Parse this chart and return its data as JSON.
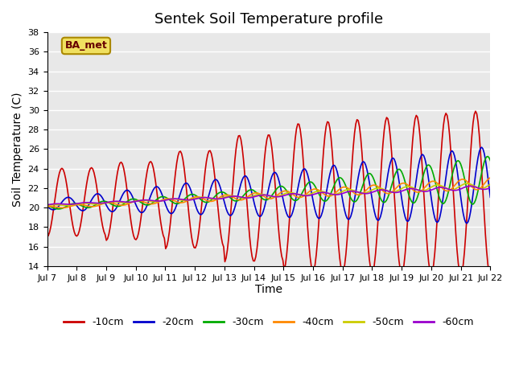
{
  "title": "Sentek Soil Temperature profile",
  "xlabel": "Time",
  "ylabel": "Soil Temperature (C)",
  "ylim": [
    14,
    38
  ],
  "annotation": "BA_met",
  "bg_color": "#e8e8e8",
  "x_tick_labels": [
    "Jul 7",
    "Jul 8",
    "Jul 9",
    "Jul 10",
    "Jul 11",
    "Jul 12",
    "Jul 13",
    "Jul 14",
    "Jul 15",
    "Jul 16",
    "Jul 17",
    "Jul 18",
    "Jul 19",
    "Jul 20",
    "Jul 21",
    "Jul 22"
  ],
  "series_colors": [
    "#cc0000",
    "#0000cc",
    "#00aa00",
    "#ff8800",
    "#cccc00",
    "#9900cc"
  ],
  "series_labels": [
    "-10cm",
    "-20cm",
    "-30cm",
    "-40cm",
    "-50cm",
    "-60cm"
  ]
}
